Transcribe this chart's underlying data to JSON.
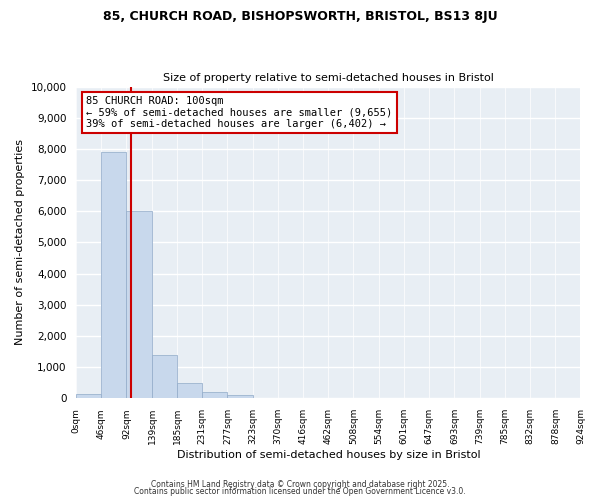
{
  "title1": "85, CHURCH ROAD, BISHOPSWORTH, BRISTOL, BS13 8JU",
  "title2": "Size of property relative to semi-detached houses in Bristol",
  "xlabel": "Distribution of semi-detached houses by size in Bristol",
  "ylabel": "Number of semi-detached properties",
  "bar_edges": [
    0,
    46,
    92,
    139,
    185,
    231,
    277,
    323,
    370,
    416,
    462,
    508,
    554,
    601,
    647,
    693,
    739,
    785,
    832,
    878,
    924
  ],
  "bar_heights": [
    150,
    7900,
    6000,
    1400,
    500,
    200,
    100,
    0,
    0,
    0,
    0,
    0,
    0,
    0,
    0,
    0,
    0,
    0,
    0,
    0
  ],
  "bar_color": "#c8d8ec",
  "bar_edgecolor": "#90aac8",
  "property_line_x": 100,
  "property_line_color": "#cc0000",
  "annotation_title": "85 CHURCH ROAD: 100sqm",
  "annotation_line1": "← 59% of semi-detached houses are smaller (9,655)",
  "annotation_line2": "39% of semi-detached houses are larger (6,402) →",
  "annotation_box_edgecolor": "#cc0000",
  "annotation_box_facecolor": "#ffffff",
  "ylim": [
    0,
    10000
  ],
  "yticks": [
    0,
    1000,
    2000,
    3000,
    4000,
    5000,
    6000,
    7000,
    8000,
    9000,
    10000
  ],
  "xtick_labels": [
    "0sqm",
    "46sqm",
    "92sqm",
    "139sqm",
    "185sqm",
    "231sqm",
    "277sqm",
    "323sqm",
    "370sqm",
    "416sqm",
    "462sqm",
    "508sqm",
    "554sqm",
    "601sqm",
    "647sqm",
    "693sqm",
    "739sqm",
    "785sqm",
    "832sqm",
    "878sqm",
    "924sqm"
  ],
  "bg_color": "#ffffff",
  "plot_bg_color": "#e8eef4",
  "grid_color": "#ffffff",
  "footer1": "Contains HM Land Registry data © Crown copyright and database right 2025.",
  "footer2": "Contains public sector information licensed under the Open Government Licence v3.0."
}
